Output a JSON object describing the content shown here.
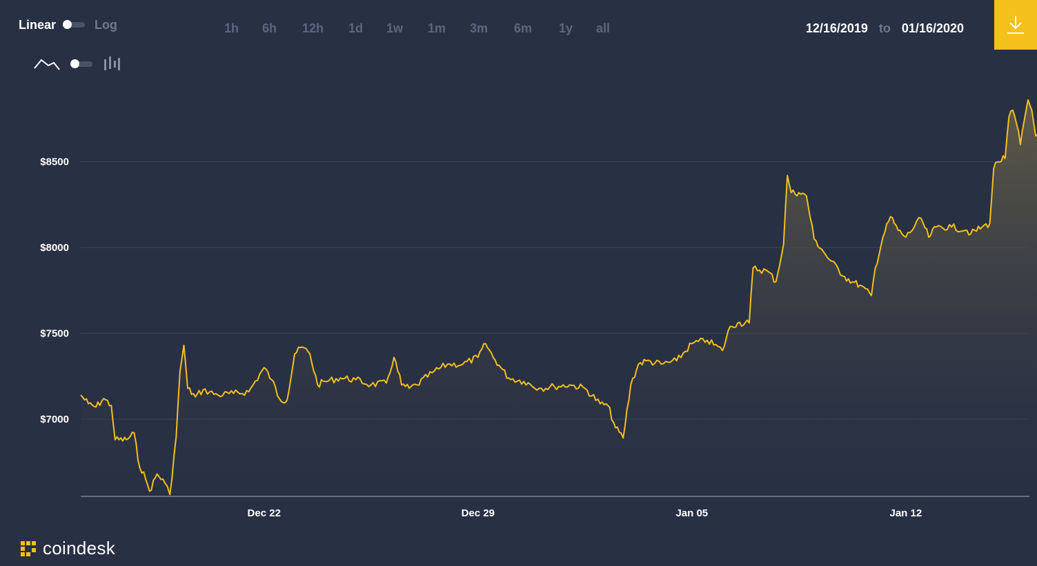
{
  "controls": {
    "scale_linear": "Linear",
    "scale_log": "Log"
  },
  "time_ranges": [
    "1h",
    "6h",
    "12h",
    "1d",
    "1w",
    "1m",
    "3m",
    "6m",
    "1y",
    "all"
  ],
  "date_range": {
    "from": "12/16/2019",
    "to_label": "to",
    "to": "01/16/2020"
  },
  "brand": {
    "name": "coindesk"
  },
  "colors": {
    "background": "#283044",
    "line": "#f4c01c",
    "accent": "#f4c01c",
    "grid": "#3b4358"
  },
  "icons": {
    "line_chart": "line-chart-icon",
    "candles": "candlestick-icon",
    "download": "download-icon"
  },
  "chart_data": {
    "type": "area",
    "title": "",
    "xlabel": "",
    "ylabel": "",
    "ylim": [
      6550,
      8920
    ],
    "xlim": [
      "2019-12-16T00:00",
      "2020-01-16T00:00"
    ],
    "y_ticks": [
      {
        "value": 7000,
        "label": "$7000"
      },
      {
        "value": 7500,
        "label": "$7500"
      },
      {
        "value": 8000,
        "label": "$8000"
      },
      {
        "value": 8500,
        "label": "$8500"
      }
    ],
    "x_ticks": [
      {
        "value": "2019-12-22T00:00",
        "label": "Dec 22"
      },
      {
        "value": "2019-12-29T00:00",
        "label": "Dec 29"
      },
      {
        "value": "2020-01-05T00:00",
        "label": "Jan 05"
      },
      {
        "value": "2020-01-12T00:00",
        "label": "Jan 12"
      }
    ],
    "grid": true,
    "series": [
      {
        "values": [
          [
            "2019-12-16T00:00",
            7140
          ],
          [
            "2019-12-16T06:00",
            7090
          ],
          [
            "2019-12-16T12:00",
            7070
          ],
          [
            "2019-12-16T18:00",
            7120
          ],
          [
            "2019-12-17T00:00",
            7080
          ],
          [
            "2019-12-17T03:00",
            6880
          ],
          [
            "2019-12-17T12:00",
            6880
          ],
          [
            "2019-12-17T18:00",
            6920
          ],
          [
            "2019-12-17T21:00",
            6760
          ],
          [
            "2019-12-18T03:00",
            6650
          ],
          [
            "2019-12-18T06:00",
            6580
          ],
          [
            "2019-12-18T12:00",
            6680
          ],
          [
            "2019-12-18T18:00",
            6630
          ],
          [
            "2019-12-18T22:00",
            6560
          ],
          [
            "2019-12-19T03:00",
            6900
          ],
          [
            "2019-12-19T06:00",
            7280
          ],
          [
            "2019-12-19T09:00",
            7430
          ],
          [
            "2019-12-19T12:00",
            7180
          ],
          [
            "2019-12-19T18:00",
            7130
          ],
          [
            "2019-12-20T00:00",
            7170
          ],
          [
            "2019-12-20T12:00",
            7140
          ],
          [
            "2019-12-21T00:00",
            7150
          ],
          [
            "2019-12-21T12:00",
            7160
          ],
          [
            "2019-12-22T00:00",
            7300
          ],
          [
            "2019-12-22T06:00",
            7230
          ],
          [
            "2019-12-22T12:00",
            7120
          ],
          [
            "2019-12-22T18:00",
            7110
          ],
          [
            "2019-12-23T00:00",
            7380
          ],
          [
            "2019-12-23T06:00",
            7420
          ],
          [
            "2019-12-23T12:00",
            7380
          ],
          [
            "2019-12-23T18:00",
            7200
          ],
          [
            "2019-12-24T00:00",
            7220
          ],
          [
            "2019-12-24T12:00",
            7240
          ],
          [
            "2019-12-25T00:00",
            7230
          ],
          [
            "2019-12-25T12:00",
            7200
          ],
          [
            "2019-12-26T00:00",
            7210
          ],
          [
            "2019-12-26T06:00",
            7360
          ],
          [
            "2019-12-26T12:00",
            7200
          ],
          [
            "2019-12-26T18:00",
            7180
          ],
          [
            "2019-12-27T00:00",
            7200
          ],
          [
            "2019-12-27T12:00",
            7270
          ],
          [
            "2019-12-28T00:00",
            7320
          ],
          [
            "2019-12-28T12:00",
            7320
          ],
          [
            "2019-12-29T00:00",
            7360
          ],
          [
            "2019-12-29T06:00",
            7440
          ],
          [
            "2019-12-29T12:00",
            7360
          ],
          [
            "2019-12-29T18:00",
            7300
          ],
          [
            "2019-12-30T00:00",
            7240
          ],
          [
            "2019-12-30T12:00",
            7220
          ],
          [
            "2019-12-31T00:00",
            7180
          ],
          [
            "2019-12-31T12:00",
            7190
          ],
          [
            "2020-01-01T00:00",
            7200
          ],
          [
            "2020-01-01T12:00",
            7180
          ],
          [
            "2020-01-02T00:00",
            7090
          ],
          [
            "2020-01-02T06:00",
            7080
          ],
          [
            "2020-01-02T12:00",
            6950
          ],
          [
            "2020-01-02T18:00",
            6890
          ],
          [
            "2020-01-03T00:00",
            7200
          ],
          [
            "2020-01-03T06:00",
            7320
          ],
          [
            "2020-01-03T12:00",
            7340
          ],
          [
            "2020-01-04T00:00",
            7320
          ],
          [
            "2020-01-04T12:00",
            7340
          ],
          [
            "2020-01-05T00:00",
            7440
          ],
          [
            "2020-01-05T12:00",
            7460
          ],
          [
            "2020-01-06T00:00",
            7400
          ],
          [
            "2020-01-06T06:00",
            7540
          ],
          [
            "2020-01-06T12:00",
            7560
          ],
          [
            "2020-01-06T21:00",
            7560
          ],
          [
            "2020-01-07T00:00",
            7880
          ],
          [
            "2020-01-07T12:00",
            7860
          ],
          [
            "2020-01-07T18:00",
            7800
          ],
          [
            "2020-01-08T00:00",
            8020
          ],
          [
            "2020-01-08T03:00",
            8420
          ],
          [
            "2020-01-08T06:00",
            8320
          ],
          [
            "2020-01-08T12:00",
            8320
          ],
          [
            "2020-01-08T18:00",
            8300
          ],
          [
            "2020-01-09T00:00",
            8050
          ],
          [
            "2020-01-09T06:00",
            7990
          ],
          [
            "2020-01-09T12:00",
            7930
          ],
          [
            "2020-01-10T00:00",
            7830
          ],
          [
            "2020-01-10T06:00",
            7800
          ],
          [
            "2020-01-10T12:00",
            7780
          ],
          [
            "2020-01-10T21:00",
            7720
          ],
          [
            "2020-01-11T00:00",
            7880
          ],
          [
            "2020-01-11T06:00",
            8060
          ],
          [
            "2020-01-11T12:00",
            8180
          ],
          [
            "2020-01-11T18:00",
            8100
          ],
          [
            "2020-01-12T00:00",
            8060
          ],
          [
            "2020-01-12T12:00",
            8170
          ],
          [
            "2020-01-12T18:00",
            8060
          ],
          [
            "2020-01-13T00:00",
            8120
          ],
          [
            "2020-01-13T12:00",
            8120
          ],
          [
            "2020-01-14T00:00",
            8100
          ],
          [
            "2020-01-14T03:00",
            8080
          ],
          [
            "2020-01-14T12:00",
            8120
          ],
          [
            "2020-01-14T18:00",
            8140
          ],
          [
            "2020-01-14T21:00",
            8460
          ],
          [
            "2020-01-15T00:00",
            8500
          ],
          [
            "2020-01-15T06:00",
            8520
          ],
          [
            "2020-01-15T09:00",
            8760
          ],
          [
            "2020-01-15T12:00",
            8800
          ],
          [
            "2020-01-15T15:00",
            8720
          ],
          [
            "2020-01-15T18:00",
            8600
          ],
          [
            "2020-01-15T21:00",
            8740
          ],
          [
            "2020-01-16T00:00",
            8860
          ],
          [
            "2020-01-16T03:00",
            8800
          ],
          [
            "2020-01-16T06:00",
            8650
          ],
          [
            "2020-01-16T09:00",
            8700
          ],
          [
            "2020-01-16T12:00",
            8760
          ],
          [
            "2020-01-16T15:00",
            8640
          ],
          [
            "2020-01-16T18:00",
            8720
          ],
          [
            "2020-01-16T21:00",
            8660
          ]
        ]
      }
    ]
  }
}
